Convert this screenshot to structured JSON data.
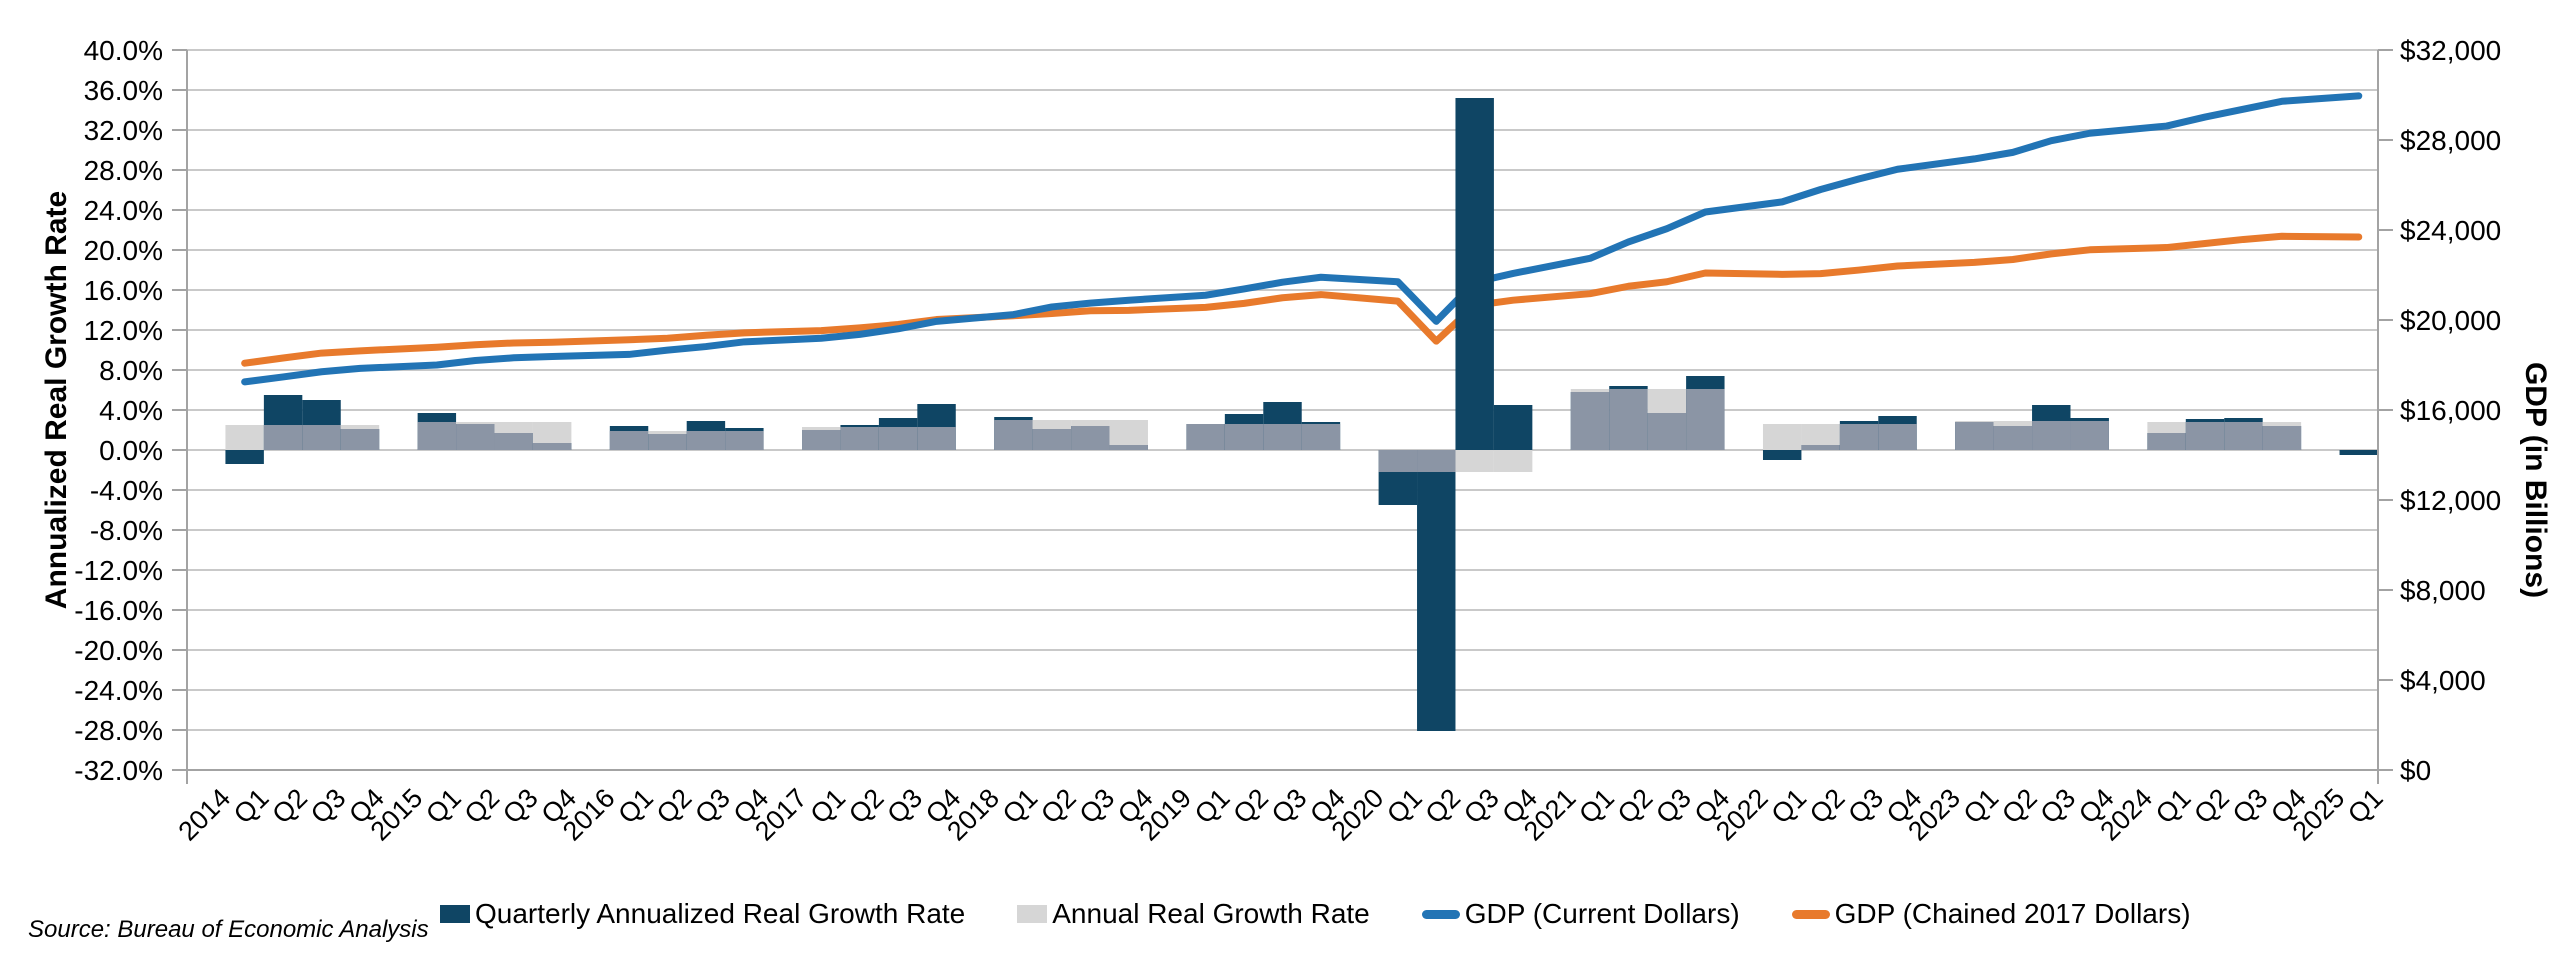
{
  "source_note": "Source: Bureau of Economic Analysis",
  "legend": {
    "items": [
      {
        "label": "Quarterly Annualized Real Growth Rate",
        "marker": "rect",
        "color": "#0f4564"
      },
      {
        "label": "Annual Real Growth Rate",
        "marker": "rect",
        "color": "#d6d6d6"
      },
      {
        "label": "GDP (Current Dollars)",
        "marker": "dash",
        "color": "#2274b5"
      },
      {
        "label": "GDP (Chained 2017 Dollars)",
        "marker": "dash",
        "color": "#e87a2c"
      }
    ]
  },
  "chart_data": {
    "type": "combo-bar-line",
    "title": "",
    "left_axis": {
      "title": "Annualized Real Growth Rate",
      "min": -32,
      "max": 40,
      "step": 4,
      "tick_labels": [
        "40.0%",
        "36.0%",
        "32.0%",
        "28.0%",
        "24.0%",
        "20.0%",
        "16.0%",
        "12.0%",
        "8.0%",
        "4.0%",
        "0.0%",
        "-4.0%",
        "-8.0%",
        "-12.0%",
        "-16.0%",
        "-20.0%",
        "-24.0%",
        "-28.0%",
        "-32.0%"
      ]
    },
    "right_axis": {
      "title": "GDP (in Billions)",
      "min": 0,
      "max": 32000,
      "step": 4000,
      "tick_labels": [
        "$32,000",
        "$28,000",
        "$24,000",
        "$20,000",
        "$16,000",
        "$12,000",
        "$8,000",
        "$4,000",
        "$0"
      ]
    },
    "x_slot_labels": [
      "2014",
      "Q1",
      "Q2",
      "Q3",
      "Q4",
      "2015",
      "Q1",
      "Q2",
      "Q3",
      "Q4",
      "2016",
      "Q1",
      "Q2",
      "Q3",
      "Q4",
      "2017",
      "Q1",
      "Q2",
      "Q3",
      "Q4",
      "2018",
      "Q1",
      "Q2",
      "Q3",
      "Q4",
      "2019",
      "Q1",
      "Q2",
      "Q3",
      "Q4",
      "2020",
      "Q1",
      "Q2",
      "Q3",
      "Q4",
      "2021",
      "Q1",
      "Q2",
      "Q3",
      "Q4",
      "2022",
      "Q1",
      "Q2",
      "Q3",
      "Q4",
      "2023",
      "Q1",
      "Q2",
      "Q3",
      "Q4",
      "2024",
      "Q1",
      "Q2",
      "Q3",
      "Q4",
      "2025",
      "Q1"
    ],
    "categories": [
      "2014 Q1",
      "2014 Q2",
      "2014 Q3",
      "2014 Q4",
      "2015 Q1",
      "2015 Q2",
      "2015 Q3",
      "2015 Q4",
      "2016 Q1",
      "2016 Q2",
      "2016 Q3",
      "2016 Q4",
      "2017 Q1",
      "2017 Q2",
      "2017 Q3",
      "2017 Q4",
      "2018 Q1",
      "2018 Q2",
      "2018 Q3",
      "2018 Q4",
      "2019 Q1",
      "2019 Q2",
      "2019 Q3",
      "2019 Q4",
      "2020 Q1",
      "2020 Q2",
      "2020 Q3",
      "2020 Q4",
      "2021 Q1",
      "2021 Q2",
      "2021 Q3",
      "2021 Q4",
      "2022 Q1",
      "2022 Q2",
      "2022 Q3",
      "2022 Q4",
      "2023 Q1",
      "2023 Q2",
      "2023 Q3",
      "2023 Q4",
      "2024 Q1",
      "2024 Q2",
      "2024 Q3",
      "2024 Q4",
      "2025 Q1"
    ],
    "years": [
      2014,
      2015,
      2016,
      2017,
      2018,
      2019,
      2020,
      2021,
      2022,
      2023,
      2024,
      2025
    ],
    "series": [
      {
        "name": "Quarterly Annualized Real Growth Rate",
        "type": "bar",
        "axis": "left",
        "color": "#0f4564",
        "values": [
          -1.4,
          5.5,
          5.0,
          2.1,
          3.7,
          2.6,
          1.7,
          0.7,
          2.4,
          1.6,
          2.9,
          2.2,
          2.0,
          2.5,
          3.2,
          4.6,
          3.3,
          2.1,
          2.4,
          0.5,
          2.6,
          3.6,
          4.8,
          2.8,
          -5.5,
          -28.1,
          35.2,
          4.5,
          5.8,
          6.4,
          3.7,
          7.4,
          -1.0,
          0.5,
          2.9,
          3.4,
          2.8,
          2.4,
          4.5,
          3.2,
          1.7,
          3.1,
          3.2,
          2.4,
          -0.5
        ]
      },
      {
        "name": "Annual Real Growth Rate",
        "type": "bar",
        "axis": "left",
        "color": "#d6d6d6",
        "overlap_color": "#8b95a5",
        "values_by_year": [
          2.5,
          2.8,
          1.9,
          2.3,
          3.0,
          2.6,
          -2.2,
          6.1,
          2.6,
          2.9,
          2.8,
          null
        ]
      },
      {
        "name": "GDP (Current Dollars)",
        "type": "line",
        "axis": "right",
        "color": "#2274b5",
        "values": [
          17250,
          17470,
          17700,
          17850,
          18000,
          18200,
          18320,
          18380,
          18470,
          18660,
          18820,
          19030,
          19190,
          19360,
          19610,
          19940,
          20240,
          20580,
          20750,
          20880,
          21100,
          21380,
          21680,
          21900,
          21700,
          19940,
          21680,
          22070,
          22740,
          23470,
          24060,
          24800,
          25250,
          25800,
          26270,
          26700,
          27160,
          27450,
          27970,
          28300,
          28620,
          29020,
          29370,
          29720,
          29960
        ]
      },
      {
        "name": "GDP (Chained 2017 Dollars)",
        "type": "line",
        "axis": "right",
        "color": "#e87a2c",
        "values": [
          18080,
          18310,
          18530,
          18630,
          18790,
          18900,
          18980,
          19010,
          19120,
          19190,
          19320,
          19430,
          19530,
          19650,
          19800,
          20020,
          20190,
          20290,
          20410,
          20430,
          20560,
          20740,
          20990,
          21130,
          20840,
          19060,
          20650,
          20880,
          21170,
          21500,
          21700,
          22090,
          22030,
          22060,
          22220,
          22400,
          22560,
          22690,
          22940,
          23120,
          23220,
          23400,
          23580,
          23720,
          23690
        ]
      }
    ],
    "grid": true,
    "legend_position": "bottom",
    "colors": {
      "gridline": "#c9c9c9",
      "axis_line": "#a3a3a3",
      "text": "#000000"
    }
  }
}
